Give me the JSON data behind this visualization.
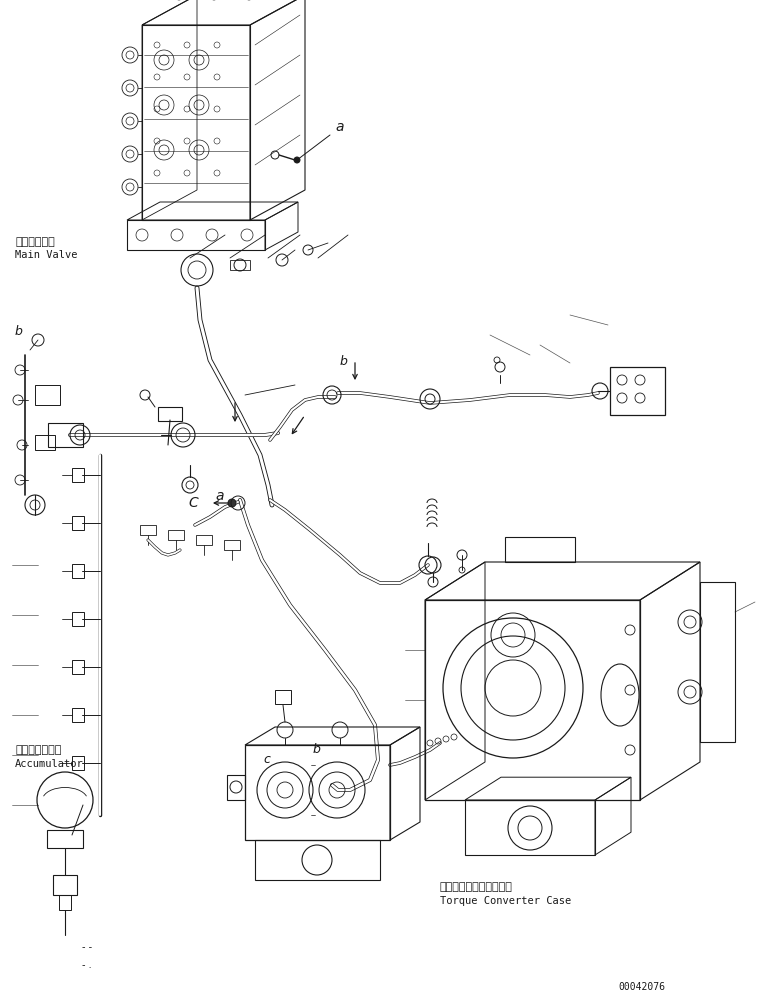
{
  "bg_color": "#ffffff",
  "line_color": "#1a1a1a",
  "fig_width": 7.58,
  "fig_height": 10.01,
  "dpi": 100,
  "labels": {
    "main_valve_jp": "メインバルブ",
    "main_valve_en": "Main Valve",
    "accumulator_jp": "アキュムレータ",
    "accumulator_en": "Accumulator",
    "torque_converter_jp": "トルクコンバータケース",
    "torque_converter_en": "Torque Converter Case",
    "part_number": "00042076"
  }
}
